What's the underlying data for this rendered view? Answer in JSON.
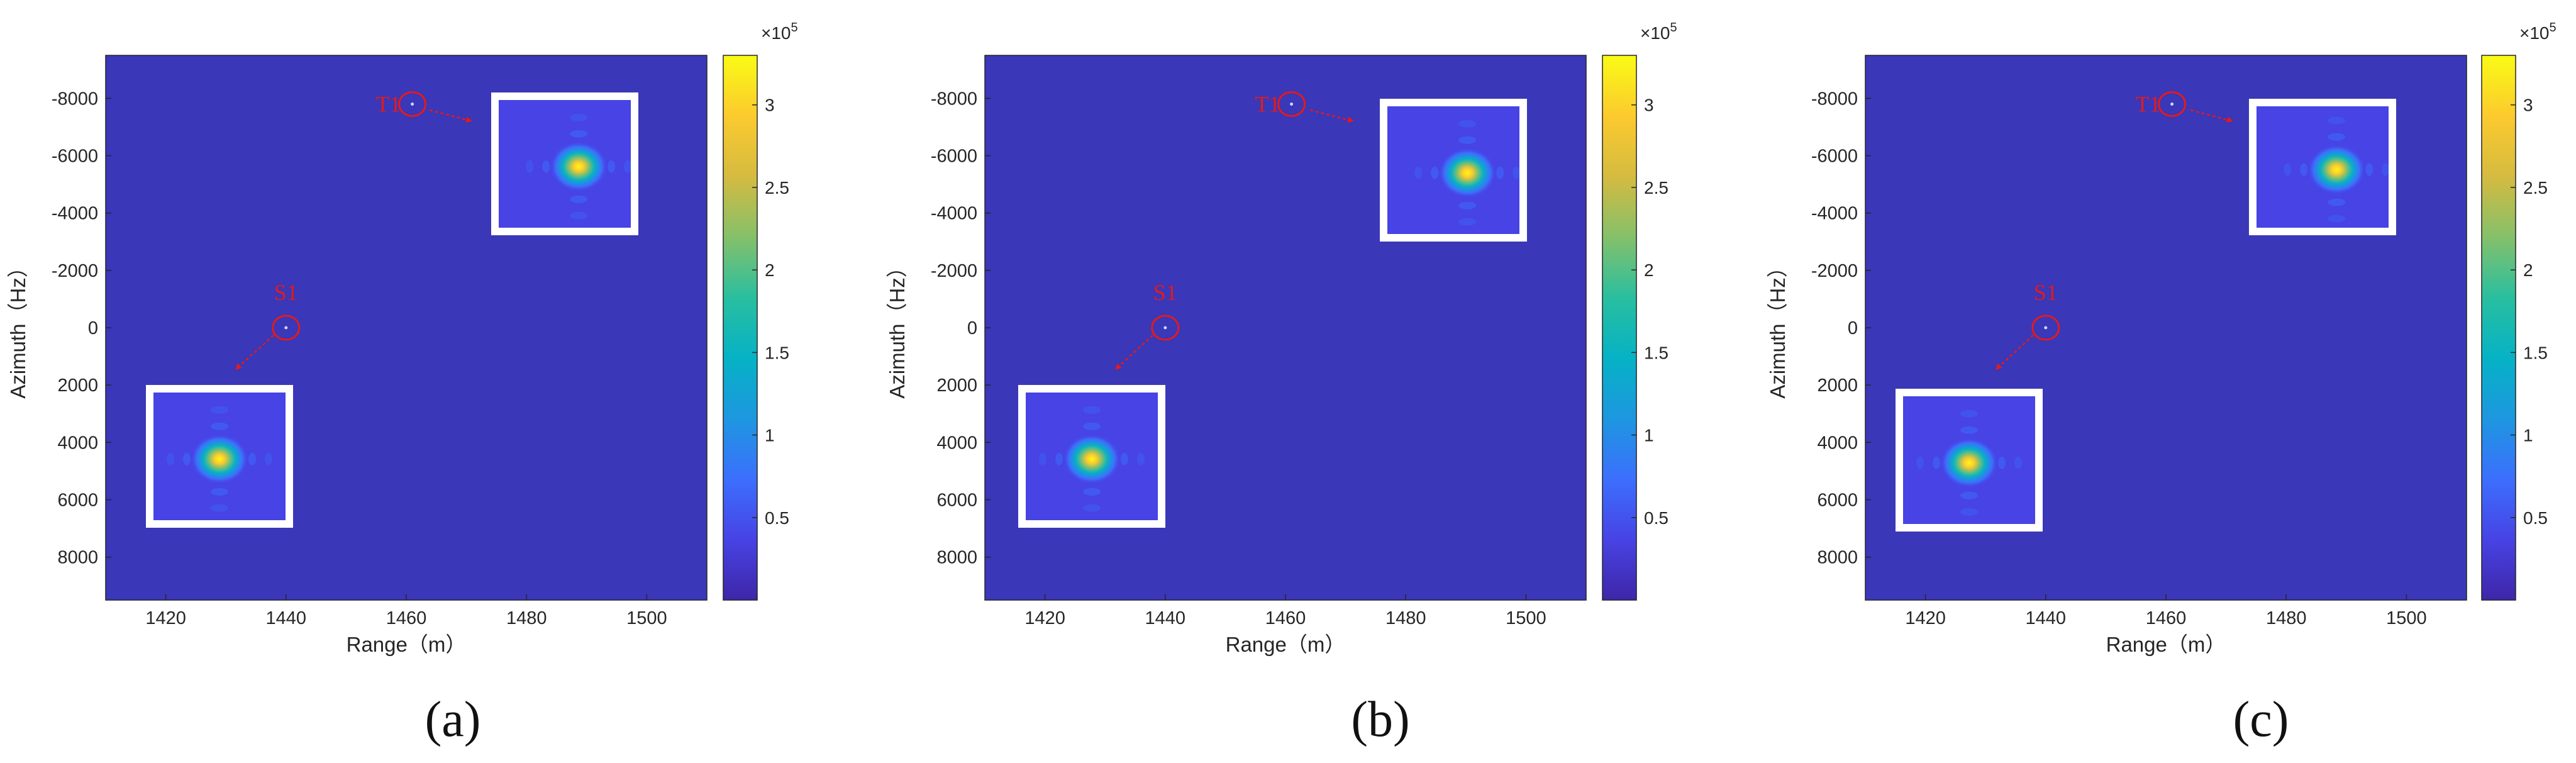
{
  "chart_data": [
    {
      "type": "heatmap",
      "panel_label": "(a)",
      "xlabel": "Range（m）",
      "ylabel": "Azimuth（Hz）",
      "xlim": [
        1410,
        1510
      ],
      "ylim": [
        9500,
        -9500
      ],
      "xticks": [
        1420,
        1440,
        1460,
        1480,
        1500
      ],
      "yticks": [
        -8000,
        -6000,
        -4000,
        -2000,
        0,
        2000,
        4000,
        6000,
        8000
      ],
      "colorbar": {
        "ticks": [
          0.5,
          1,
          1.5,
          2,
          2.5,
          3
        ],
        "max": 3.3,
        "multiplier": "×10",
        "exponent": "5"
      },
      "points": [
        {
          "label": "T1",
          "x": 1461,
          "y": -7800
        },
        {
          "label": "S1",
          "x": 1440,
          "y": 0
        }
      ]
    },
    {
      "type": "heatmap",
      "panel_label": "(b)",
      "xlabel": "Range（m）",
      "ylabel": "Azimuth（Hz）",
      "xlim": [
        1410,
        1510
      ],
      "ylim": [
        9500,
        -9500
      ],
      "xticks": [
        1420,
        1440,
        1460,
        1480,
        1500
      ],
      "yticks": [
        -8000,
        -6000,
        -4000,
        -2000,
        0,
        2000,
        4000,
        6000,
        8000
      ],
      "colorbar": {
        "ticks": [
          0.5,
          1,
          1.5,
          2,
          2.5,
          3
        ],
        "max": 3.3,
        "multiplier": "×10",
        "exponent": "5"
      },
      "points": [
        {
          "label": "T1",
          "x": 1461,
          "y": -7800
        },
        {
          "label": "S1",
          "x": 1440,
          "y": 0
        }
      ]
    },
    {
      "type": "heatmap",
      "panel_label": "(c)",
      "xlabel": "Range（m）",
      "ylabel": "Azimuth（Hz）",
      "xlim": [
        1410,
        1510
      ],
      "ylim": [
        9500,
        -9500
      ],
      "xticks": [
        1420,
        1440,
        1460,
        1480,
        1500
      ],
      "yticks": [
        -8000,
        -6000,
        -4000,
        -2000,
        0,
        2000,
        4000,
        6000,
        8000
      ],
      "colorbar": {
        "ticks": [
          0.5,
          1,
          1.5,
          2,
          2.5,
          3
        ],
        "max": 3.3,
        "multiplier": "×10",
        "exponent": "5"
      },
      "points": [
        {
          "label": "T1",
          "x": 1461,
          "y": -7800
        },
        {
          "label": "S1",
          "x": 1440,
          "y": 0
        }
      ]
    }
  ],
  "colors": {
    "background_field": "#3a37b8",
    "colormap": [
      "#3e26a8",
      "#4743e4",
      "#3c6ffd",
      "#1d97e0",
      "#06b2c5",
      "#29bf9f",
      "#85c06a",
      "#d5bb40",
      "#fcca2e",
      "#f9fb15"
    ],
    "marker": "#e31a1c",
    "inset_frame": "#ffffff"
  }
}
